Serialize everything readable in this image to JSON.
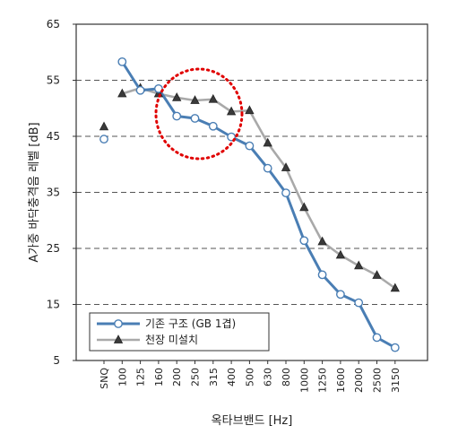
{
  "chart_data": {
    "type": "line",
    "xlabel": "옥타브밴드 [Hz]",
    "ylabel": "A가중 바닥충격음 레벨 [dB]",
    "ylim": [
      5,
      65
    ],
    "yticks": [
      5,
      15,
      25,
      35,
      45,
      55,
      65
    ],
    "dashed_gridlines_at": [
      15,
      25,
      35,
      45,
      55
    ],
    "categories": [
      "SNQ",
      "100",
      "125",
      "160",
      "200",
      "250",
      "315",
      "400",
      "500",
      "630",
      "800",
      "1000",
      "1250",
      "1600",
      "2000",
      "2500",
      "3150"
    ],
    "legend_position": "bottom-left",
    "series": [
      {
        "name": "기존 구조 (GB 1겹)",
        "marker": "circle",
        "color": "#4a7eb4",
        "values": [
          44.5,
          58.3,
          53.2,
          53.5,
          48.6,
          48.2,
          46.8,
          44.9,
          43.3,
          39.3,
          34.9,
          26.4,
          20.3,
          16.8,
          15.3,
          9.1,
          7.3
        ]
      },
      {
        "name": "천장 미설치",
        "marker": "triangle",
        "color": "#a9a9a9",
        "values": [
          46.7,
          52.6,
          53.6,
          52.6,
          51.9,
          51.4,
          51.6,
          49.4,
          49.6,
          43.8,
          39.4,
          32.3,
          26.2,
          23.8,
          21.9,
          20.2,
          17.9
        ]
      }
    ],
    "annotation": "red dotted circle around the 125–315 Hz region"
  }
}
